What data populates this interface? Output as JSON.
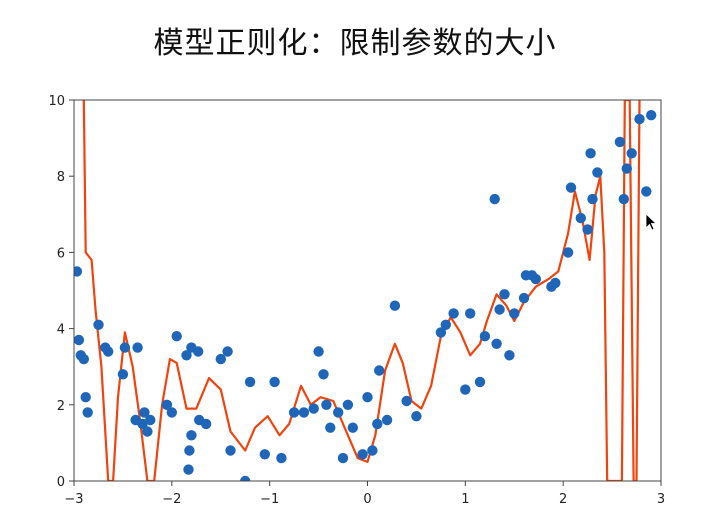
{
  "title": "模型正则化：限制参数的大小",
  "chart_data": {
    "type": "scatter",
    "title": "模型正则化：限制参数的大小",
    "xlabel": "",
    "ylabel": "",
    "xlim": [
      -3,
      3
    ],
    "ylim": [
      0,
      10
    ],
    "xticks": [
      "−3",
      "−2",
      "−1",
      "0",
      "1",
      "2",
      "3"
    ],
    "yticks": [
      "0",
      "2",
      "4",
      "6",
      "8",
      "10"
    ],
    "grid": false,
    "colors": {
      "points": "#1f66b8",
      "curve": "#f0440e",
      "axes": "#444444"
    },
    "points": [
      [
        -2.97,
        5.5
      ],
      [
        -2.95,
        3.7
      ],
      [
        -2.93,
        3.3
      ],
      [
        -2.9,
        3.2
      ],
      [
        -2.88,
        2.2
      ],
      [
        -2.86,
        1.8
      ],
      [
        -2.75,
        4.1
      ],
      [
        -2.68,
        3.5
      ],
      [
        -2.65,
        3.4
      ],
      [
        -2.5,
        2.8
      ],
      [
        -2.48,
        3.5
      ],
      [
        -2.35,
        3.5
      ],
      [
        -2.37,
        1.6
      ],
      [
        -2.3,
        1.5
      ],
      [
        -2.28,
        1.8
      ],
      [
        -2.25,
        1.3
      ],
      [
        -2.22,
        1.6
      ],
      [
        -2.05,
        2.0
      ],
      [
        -2.0,
        1.8
      ],
      [
        -1.95,
        3.8
      ],
      [
        -1.85,
        3.3
      ],
      [
        -1.8,
        3.5
      ],
      [
        -1.73,
        3.4
      ],
      [
        -1.72,
        1.6
      ],
      [
        -1.65,
        1.5
      ],
      [
        -1.8,
        1.2
      ],
      [
        -1.82,
        0.8
      ],
      [
        -1.83,
        0.3
      ],
      [
        -1.5,
        3.2
      ],
      [
        -1.43,
        3.4
      ],
      [
        -1.4,
        0.8
      ],
      [
        -1.25,
        0.0
      ],
      [
        -1.2,
        2.6
      ],
      [
        -1.05,
        0.7
      ],
      [
        -0.95,
        2.6
      ],
      [
        -0.88,
        0.6
      ],
      [
        -0.75,
        1.8
      ],
      [
        -0.65,
        1.8
      ],
      [
        -0.55,
        1.9
      ],
      [
        -0.5,
        3.4
      ],
      [
        -0.45,
        2.8
      ],
      [
        -0.42,
        2.0
      ],
      [
        -0.38,
        1.4
      ],
      [
        -0.3,
        1.8
      ],
      [
        -0.25,
        0.6
      ],
      [
        -0.2,
        2.0
      ],
      [
        -0.15,
        1.4
      ],
      [
        -0.05,
        0.7
      ],
      [
        0.0,
        2.2
      ],
      [
        0.05,
        0.8
      ],
      [
        0.1,
        1.5
      ],
      [
        0.12,
        2.9
      ],
      [
        0.2,
        1.6
      ],
      [
        0.28,
        4.6
      ],
      [
        0.4,
        2.1
      ],
      [
        0.5,
        1.7
      ],
      [
        0.75,
        3.9
      ],
      [
        0.8,
        4.1
      ],
      [
        0.88,
        4.4
      ],
      [
        1.0,
        2.4
      ],
      [
        1.05,
        4.4
      ],
      [
        1.15,
        2.6
      ],
      [
        1.2,
        3.8
      ],
      [
        1.3,
        7.4
      ],
      [
        1.32,
        3.6
      ],
      [
        1.35,
        4.5
      ],
      [
        1.4,
        4.9
      ],
      [
        1.45,
        3.3
      ],
      [
        1.5,
        4.4
      ],
      [
        1.6,
        4.8
      ],
      [
        1.62,
        5.4
      ],
      [
        1.68,
        5.4
      ],
      [
        1.72,
        5.3
      ],
      [
        1.88,
        5.1
      ],
      [
        1.92,
        5.2
      ],
      [
        2.05,
        6.0
      ],
      [
        2.08,
        7.7
      ],
      [
        2.18,
        6.9
      ],
      [
        2.25,
        6.6
      ],
      [
        2.28,
        8.6
      ],
      [
        2.3,
        7.4
      ],
      [
        2.35,
        8.1
      ],
      [
        2.58,
        8.9
      ],
      [
        2.62,
        7.4
      ],
      [
        2.65,
        8.2
      ],
      [
        2.7,
        8.6
      ],
      [
        2.78,
        9.5
      ],
      [
        2.85,
        7.6
      ],
      [
        2.9,
        9.6
      ]
    ],
    "curve": [
      [
        -2.9,
        10.0
      ],
      [
        -2.88,
        6.0
      ],
      [
        -2.82,
        5.8
      ],
      [
        -2.78,
        4.5
      ],
      [
        -2.72,
        3.0
      ],
      [
        -2.65,
        0.0
      ],
      [
        -2.6,
        0.0
      ],
      [
        -2.55,
        2.2
      ],
      [
        -2.48,
        3.9
      ],
      [
        -2.4,
        3.0
      ],
      [
        -2.32,
        1.5
      ],
      [
        -2.25,
        0.0
      ],
      [
        -2.18,
        0.0
      ],
      [
        -2.1,
        2.0
      ],
      [
        -2.02,
        3.2
      ],
      [
        -1.95,
        3.1
      ],
      [
        -1.85,
        1.9
      ],
      [
        -1.75,
        1.9
      ],
      [
        -1.62,
        2.7
      ],
      [
        -1.5,
        2.4
      ],
      [
        -1.4,
        1.3
      ],
      [
        -1.25,
        0.8
      ],
      [
        -1.15,
        1.4
      ],
      [
        -1.02,
        1.7
      ],
      [
        -0.9,
        1.2
      ],
      [
        -0.8,
        1.5
      ],
      [
        -0.68,
        2.5
      ],
      [
        -0.58,
        2.0
      ],
      [
        -0.48,
        2.2
      ],
      [
        -0.35,
        2.1
      ],
      [
        -0.2,
        1.2
      ],
      [
        -0.1,
        0.6
      ],
      [
        0.0,
        0.5
      ],
      [
        0.08,
        1.2
      ],
      [
        0.18,
        2.9
      ],
      [
        0.28,
        3.6
      ],
      [
        0.36,
        3.1
      ],
      [
        0.45,
        2.1
      ],
      [
        0.55,
        1.9
      ],
      [
        0.65,
        2.5
      ],
      [
        0.75,
        3.8
      ],
      [
        0.85,
        4.3
      ],
      [
        0.95,
        3.9
      ],
      [
        1.05,
        3.3
      ],
      [
        1.15,
        3.6
      ],
      [
        1.22,
        4.2
      ],
      [
        1.32,
        4.9
      ],
      [
        1.42,
        4.6
      ],
      [
        1.5,
        4.2
      ],
      [
        1.6,
        4.7
      ],
      [
        1.72,
        5.1
      ],
      [
        1.85,
        5.3
      ],
      [
        1.95,
        5.5
      ],
      [
        2.05,
        6.5
      ],
      [
        2.12,
        7.6
      ],
      [
        2.2,
        6.8
      ],
      [
        2.27,
        5.8
      ],
      [
        2.33,
        7.5
      ],
      [
        2.38,
        8.0
      ],
      [
        2.42,
        6.0
      ],
      [
        2.45,
        0.0
      ],
      [
        2.6,
        0.0
      ],
      [
        2.63,
        10.0
      ],
      [
        2.68,
        10.0
      ],
      [
        2.72,
        0.0
      ],
      [
        2.75,
        0.0
      ],
      [
        2.78,
        10.0
      ]
    ]
  }
}
